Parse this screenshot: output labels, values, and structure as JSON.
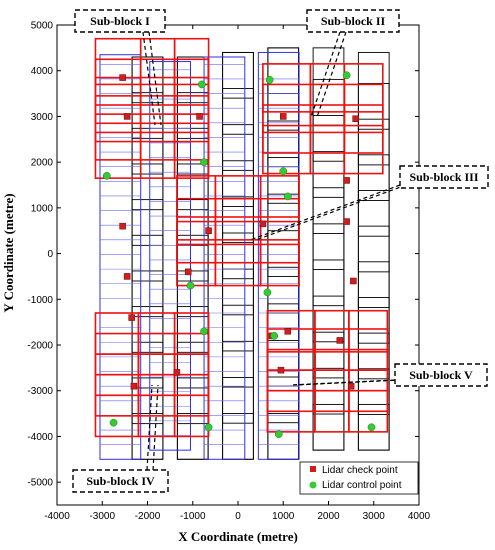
{
  "chart_data": {
    "type": "scatter",
    "title": "",
    "xlabel": "X Coordinate (metre)",
    "ylabel": "Y Coordinate (metre)",
    "xlim": [
      -4000,
      4000
    ],
    "ylim": [
      -5500,
      5000
    ],
    "xticks": [
      -4000,
      -3000,
      -2000,
      -1000,
      0,
      1000,
      2000,
      3000,
      4000
    ],
    "yticks": [
      -5000,
      -4000,
      -3000,
      -2000,
      -1000,
      0,
      1000,
      2000,
      3000,
      4000,
      5000
    ],
    "grid": false,
    "legend_position": "bottom-right",
    "series": [
      {
        "name": "Lidar check point",
        "marker": "square",
        "color": "#cc1f1f",
        "points": [
          [
            -2550,
            3850
          ],
          [
            -2450,
            3000
          ],
          [
            -850,
            3000
          ],
          [
            1000,
            3000
          ],
          [
            2600,
            2950
          ],
          [
            2400,
            1600
          ],
          [
            -2550,
            600
          ],
          [
            -650,
            500
          ],
          [
            550,
            650
          ],
          [
            2400,
            700
          ],
          [
            -2450,
            -500
          ],
          [
            -1100,
            -400
          ],
          [
            2550,
            -600
          ],
          [
            -2350,
            -1400
          ],
          [
            1100,
            -1700
          ],
          [
            2250,
            -1900
          ],
          [
            750,
            -1800
          ],
          [
            -1350,
            -2600
          ],
          [
            950,
            -2550
          ],
          [
            -2300,
            -2900
          ],
          [
            2500,
            -2900
          ]
        ]
      },
      {
        "name": "Lidar control point",
        "marker": "circle",
        "color": "#33cc33",
        "points": [
          [
            -800,
            3700
          ],
          [
            700,
            3800
          ],
          [
            2400,
            3900
          ],
          [
            -750,
            2000
          ],
          [
            1000,
            1800
          ],
          [
            -2900,
            1700
          ],
          [
            1100,
            1250
          ],
          [
            -1050,
            -700
          ],
          [
            650,
            -850
          ],
          [
            -750,
            -1700
          ],
          [
            800,
            -1800
          ],
          [
            -2750,
            -3700
          ],
          [
            -650,
            -3800
          ],
          [
            900,
            -3950
          ],
          [
            2950,
            -3800
          ]
        ]
      }
    ],
    "annotations": [
      "Sub-block I",
      "Sub-block II",
      "Sub-block III",
      "Sub-block IV",
      "Sub-block V"
    ],
    "colors": {
      "black_strips": "#000000",
      "blue_strips": "#2d2df0",
      "red_blocks": "#ee1111"
    }
  }
}
